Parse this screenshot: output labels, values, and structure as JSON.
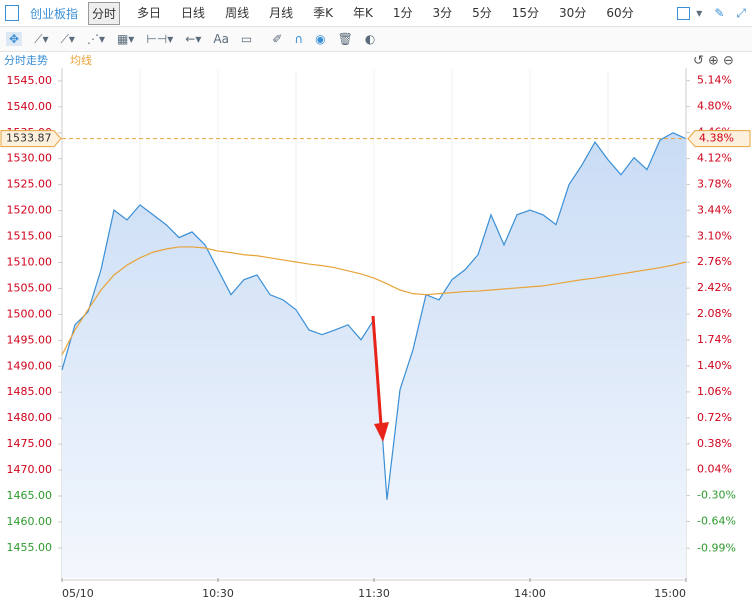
{
  "toolbar": {
    "index_name": "创业板指",
    "periods": [
      "分时",
      "多日",
      "日线",
      "周线",
      "月线",
      "季K",
      "年K",
      "1分",
      "3分",
      "5分",
      "15分",
      "30分",
      "60分"
    ],
    "text_tool": "Aa"
  },
  "chart_data": {
    "type": "line",
    "legend": [
      "分时走势",
      "均线"
    ],
    "x": [
      "09:30",
      "09:35",
      "09:40",
      "09:45",
      "09:50",
      "09:55",
      "10:00",
      "10:05",
      "10:10",
      "10:15",
      "10:20",
      "10:25",
      "10:30",
      "10:35",
      "10:40",
      "10:45",
      "10:50",
      "10:55",
      "11:00",
      "11:05",
      "11:10",
      "11:15",
      "11:20",
      "11:25",
      "11:30",
      "13:05",
      "13:10",
      "13:15",
      "13:20",
      "13:25",
      "13:30",
      "13:35",
      "13:40",
      "13:45",
      "13:50",
      "13:55",
      "14:00",
      "14:05",
      "14:10",
      "14:15",
      "14:20",
      "14:25",
      "14:30",
      "14:35",
      "14:40",
      "14:45",
      "14:50",
      "14:55",
      "15:00"
    ],
    "series": [
      {
        "name": "分时走势",
        "color": "#3a8fd6",
        "values": [
          1489.3,
          1498,
          1500.5,
          1508.6,
          1520.1,
          1518.2,
          1521.1,
          1519.2,
          1517.3,
          1514.8,
          1515.9,
          1513.4,
          1508.6,
          1503.8,
          1506.7,
          1507.6,
          1503.8,
          1502.8,
          1500.9,
          1497,
          1496.1,
          1497,
          1498,
          1495.1,
          1499,
          1464.3,
          1485.5,
          1493.2,
          1503.8,
          1502.8,
          1506.7,
          1508.6,
          1511.5,
          1519.2,
          1513.4,
          1519.2,
          1520.1,
          1519.2,
          1517.3,
          1525,
          1528.8,
          1533.2,
          1529.8,
          1526.9,
          1530.2,
          1527.9,
          1533.6,
          1535,
          1533.87
        ]
      },
      {
        "name": "均线",
        "color": "#e8a33a",
        "values": [
          1492.2,
          1497,
          1500.9,
          1504.7,
          1507.6,
          1509.5,
          1510.9,
          1512,
          1512.6,
          1513,
          1513,
          1512.8,
          1512.2,
          1511.9,
          1511.5,
          1511.3,
          1510.9,
          1510.5,
          1510.1,
          1509.7,
          1509.4,
          1509,
          1508.4,
          1507.8,
          1507,
          1505.9,
          1504.7,
          1504,
          1503.8,
          1504,
          1504.2,
          1504.4,
          1504.5,
          1504.7,
          1504.9,
          1505.1,
          1505.3,
          1505.5,
          1505.9,
          1506.3,
          1506.7,
          1507,
          1507.4,
          1507.8,
          1508.2,
          1508.6,
          1509,
          1509.5,
          1510.1
        ]
      }
    ],
    "ylim": [
      1449.2,
      1547.1
    ],
    "yticks": [
      {
        "value": 1545,
        "label": "1545.00"
      },
      {
        "value": 1540,
        "label": "1540.00"
      },
      {
        "value": 1535,
        "label": "1535.00"
      },
      {
        "value": 1530,
        "label": "1530.00"
      },
      {
        "value": 1525,
        "label": "1525.00"
      },
      {
        "value": 1520,
        "label": "1520.00"
      },
      {
        "value": 1515,
        "label": "1515.00"
      },
      {
        "value": 1510,
        "label": "1510.00"
      },
      {
        "value": 1505,
        "label": "1505.00"
      },
      {
        "value": 1500,
        "label": "1500.00"
      },
      {
        "value": 1495,
        "label": "1495.00"
      },
      {
        "value": 1490,
        "label": "1490.00"
      },
      {
        "value": 1485,
        "label": "1485.00"
      },
      {
        "value": 1480,
        "label": "1480.00"
      },
      {
        "value": 1475,
        "label": "1475.00"
      },
      {
        "value": 1470,
        "label": "1470.00"
      },
      {
        "value": 1465,
        "label": "1465.00"
      },
      {
        "value": 1460,
        "label": "1460.00"
      },
      {
        "value": 1455,
        "label": "1455.00"
      }
    ],
    "y2lim": [
      -1.38,
      5.28
    ],
    "y2ticks": [
      {
        "value": 5.14,
        "label": "5.14%"
      },
      {
        "value": 4.8,
        "label": "4.80%"
      },
      {
        "value": 4.46,
        "label": "4.46%"
      },
      {
        "value": 4.12,
        "label": "4.12%"
      },
      {
        "value": 3.78,
        "label": "3.78%"
      },
      {
        "value": 3.44,
        "label": "3.44%"
      },
      {
        "value": 3.1,
        "label": "3.10%"
      },
      {
        "value": 2.76,
        "label": "2.76%"
      },
      {
        "value": 2.42,
        "label": "2.42%"
      },
      {
        "value": 2.08,
        "label": "2.08%"
      },
      {
        "value": 1.74,
        "label": "1.74%"
      },
      {
        "value": 1.4,
        "label": "1.40%"
      },
      {
        "value": 1.06,
        "label": "1.06%"
      },
      {
        "value": 0.72,
        "label": "0.72%"
      },
      {
        "value": 0.38,
        "label": "0.38%"
      },
      {
        "value": 0.04,
        "label": "0.04%"
      },
      {
        "value": -0.3,
        "label": "-0.30%"
      },
      {
        "value": -0.64,
        "label": "-0.64%"
      },
      {
        "value": -0.99,
        "label": "-0.99%"
      }
    ],
    "xticks": [
      {
        "value": "09:30",
        "label": "05/10"
      },
      "10:30",
      "11:30",
      "14:00",
      "15:00"
    ],
    "last_change": "4.38%",
    "up_color": "#d0021b",
    "down_color": "#2f9a2f"
  }
}
